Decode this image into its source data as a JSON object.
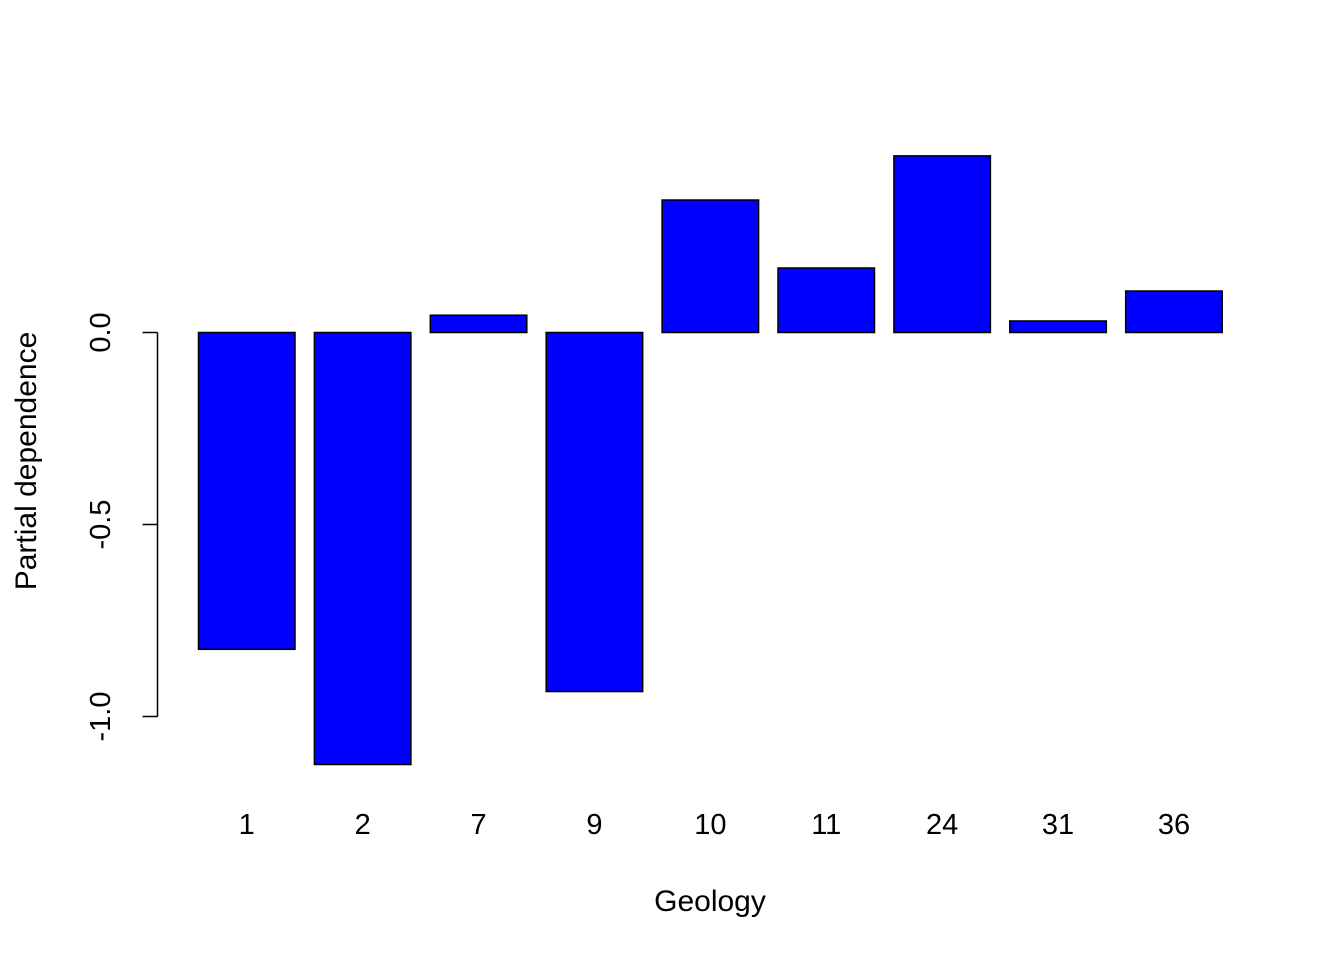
{
  "chart_data": {
    "type": "bar",
    "title": "",
    "xlabel": "Geology",
    "ylabel": "Partial dependence",
    "categories": [
      "1",
      "2",
      "7",
      "9",
      "10",
      "11",
      "24",
      "31",
      "36"
    ],
    "values": [
      -0.825,
      -1.125,
      0.045,
      -0.935,
      0.345,
      0.168,
      0.46,
      0.03,
      0.108
    ],
    "y_ticks": [
      -1.0,
      -0.5,
      0.0
    ],
    "y_tick_labels": [
      "-1.0",
      "-0.5",
      "0.0"
    ],
    "ylim": [
      -1.125,
      0.46
    ],
    "grid": false,
    "bar_color": "#0000FF",
    "bar_border_color": "#000000"
  }
}
